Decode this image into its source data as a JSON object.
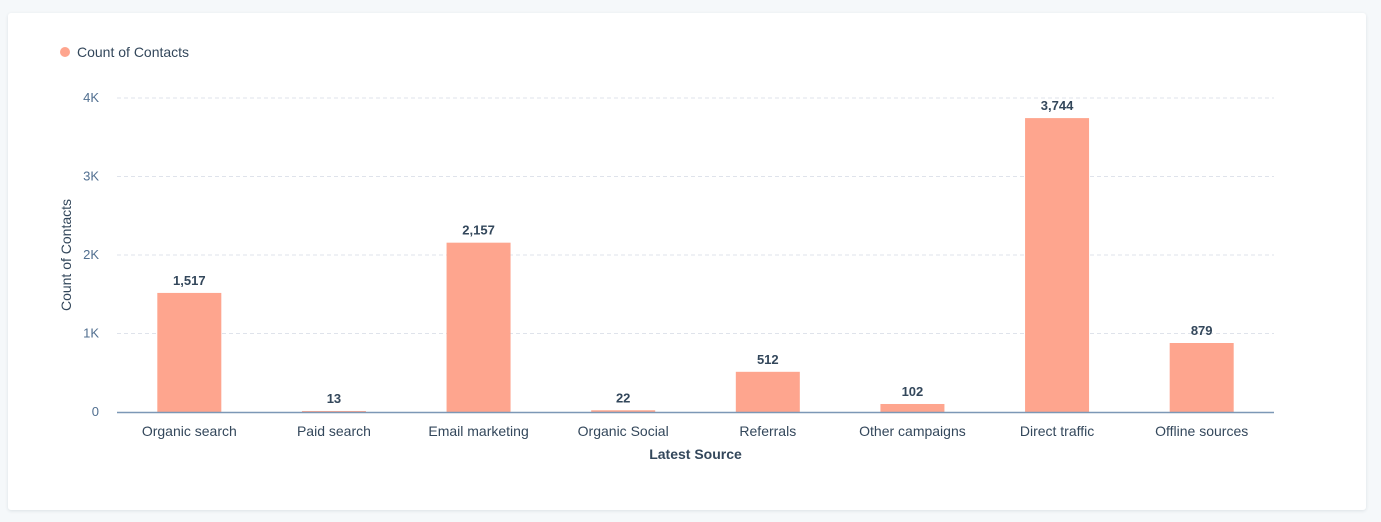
{
  "legend": {
    "label": "Count of Contacts",
    "color": "#fea58e"
  },
  "chart_data": {
    "type": "bar",
    "title": "",
    "categories": [
      "Organic search",
      "Paid search",
      "Email marketing",
      "Organic Social",
      "Referrals",
      "Other campaigns",
      "Direct traffic",
      "Offline sources"
    ],
    "series": [
      {
        "name": "Count of Contacts",
        "values": [
          1517,
          13,
          2157,
          22,
          512,
          102,
          3744,
          879
        ],
        "color": "#fea58e"
      }
    ],
    "value_labels": [
      "1,517",
      "13",
      "2,157",
      "22",
      "512",
      "102",
      "3,744",
      "879"
    ],
    "xlabel": "Latest Source",
    "ylabel": "Count of Contacts",
    "ylim": [
      0,
      4000
    ],
    "yticks": [
      0,
      1000,
      2000,
      3000,
      4000
    ],
    "ytick_labels": [
      "0",
      "1K",
      "2K",
      "3K",
      "4K"
    ],
    "grid": true,
    "legend_position": "top-left"
  }
}
